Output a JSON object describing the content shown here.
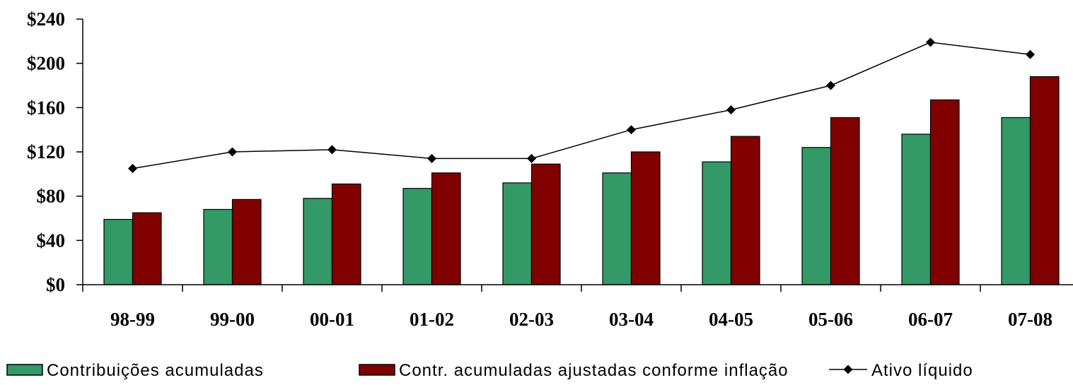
{
  "chart_data": {
    "type": "bar",
    "categories": [
      "98-99",
      "99-00",
      "00-01",
      "01-02",
      "02-03",
      "03-04",
      "04-05",
      "05-06",
      "06-07",
      "07-08"
    ],
    "y_ticks": [
      "$0",
      "$40",
      "$80",
      "$120",
      "$160",
      "$200",
      "$240"
    ],
    "ylim": [
      0,
      240
    ],
    "grid": false,
    "legend_position": "bottom",
    "series": [
      {
        "name": "Contribuições acumuladas",
        "type": "bar",
        "color": "#339966",
        "values": [
          59,
          68,
          78,
          87,
          92,
          101,
          111,
          124,
          136,
          151
        ]
      },
      {
        "name": "Contr. acumuladas ajustadas conforme inflação",
        "type": "bar",
        "color": "#800000",
        "values": [
          65,
          77,
          91,
          101,
          109,
          120,
          134,
          151,
          167,
          188
        ]
      },
      {
        "name": "Ativo líquido",
        "type": "line",
        "color": "#000000",
        "marker": "diamond",
        "values": [
          105,
          120,
          122,
          114,
          114,
          140,
          158,
          180,
          219,
          208
        ]
      }
    ]
  }
}
